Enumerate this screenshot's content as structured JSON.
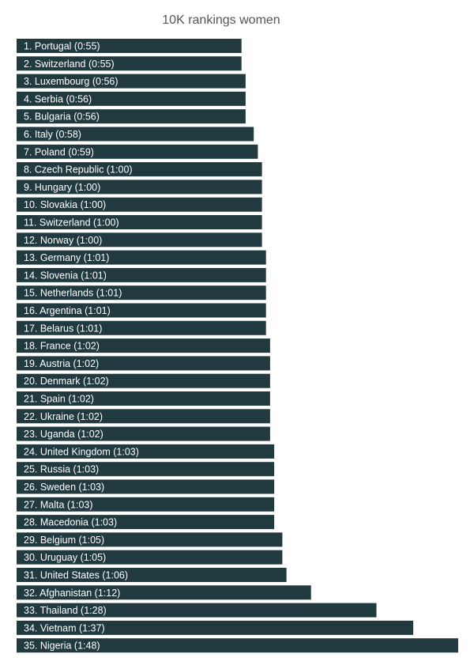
{
  "chart_data": {
    "type": "bar",
    "orientation": "horizontal",
    "title": "10K rankings women",
    "xlabel": "",
    "ylabel": "",
    "grid": false,
    "bar_color": "#213a40",
    "label_color": "#ffffff",
    "xlim_seconds": [
      0,
      6480
    ],
    "categories": [
      "1. Portugal (0:55)",
      "2. Switzerland (0:55)",
      "3. Luxembourg (0:56)",
      "4. Serbia (0:56)",
      "5. Bulgaria (0:56)",
      "6. Italy (0:58)",
      "7. Poland (0:59)",
      "8. Czech Republic (1:00)",
      "9. Hungary (1:00)",
      "10. Slovakia (1:00)",
      "11. Switzerland (1:00)",
      "12. Norway (1:00)",
      "13. Germany (1:01)",
      "14. Slovenia (1:01)",
      "15. Netherlands (1:01)",
      "16. Argentina (1:01)",
      "17. Belarus (1:01)",
      "18. France (1:02)",
      "19. Austria (1:02)",
      "20. Denmark (1:02)",
      "21. Spain (1:02)",
      "22. Ukraine (1:02)",
      "23. Uganda (1:02)",
      "24. United Kingdom (1:03)",
      "25. Russia (1:03)",
      "26. Sweden (1:03)",
      "27. Malta (1:03)",
      "28. Macedonia (1:03)",
      "29. Belgium (1:05)",
      "30. Uruguay (1:05)",
      "31. United States (1:06)",
      "32. Afghanistan (1:12)",
      "33. Thailand (1:28)",
      "34. Vietnam (1:37)",
      "35. Nigeria (1:48)"
    ],
    "values_seconds": [
      3300,
      3300,
      3360,
      3360,
      3360,
      3480,
      3540,
      3600,
      3600,
      3600,
      3600,
      3600,
      3660,
      3660,
      3660,
      3660,
      3660,
      3720,
      3720,
      3720,
      3720,
      3720,
      3720,
      3780,
      3780,
      3780,
      3780,
      3780,
      3900,
      3900,
      3960,
      4320,
      5280,
      5820,
      6480
    ]
  }
}
